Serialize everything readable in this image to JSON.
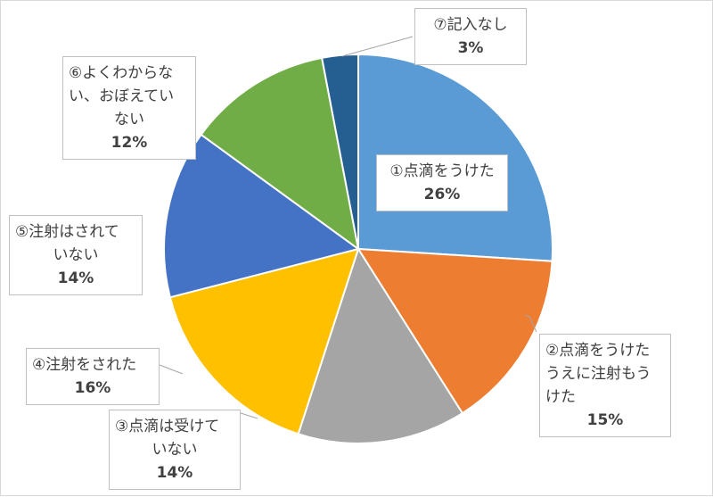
{
  "chart_data": {
    "type": "pie",
    "start_angle_deg": 0,
    "direction": "clockwise",
    "slices": [
      {
        "label": "①点滴をうけた",
        "value": 26,
        "display": "26%",
        "color": "#5B9BD5"
      },
      {
        "label": "②点滴をうけたうえに注射もうけた",
        "value": 15,
        "display": "15%",
        "color": "#ED7D31"
      },
      {
        "label": "③点滴は受けていない",
        "value": 14,
        "display": "14%",
        "color": "#A5A5A5"
      },
      {
        "label": "④注射をされた",
        "value": 16,
        "display": "16%",
        "color": "#FFC000"
      },
      {
        "label": "⑤注射はされていない",
        "value": 14,
        "display": "14%",
        "color": "#4472C4"
      },
      {
        "label": "⑥よくわからない、おぼえていない",
        "value": 12,
        "display": "12%",
        "color": "#70AD47"
      },
      {
        "label": "⑦記入なし",
        "value": 3,
        "display": "3%",
        "color": "#255E91"
      }
    ],
    "label_lines": [
      [
        "①点滴をうけた"
      ],
      [
        "②点滴をうけた",
        "うえに注射もう",
        "けた"
      ],
      [
        "③点滴は受けて",
        "いない"
      ],
      [
        "④注射をされた"
      ],
      [
        "⑤注射はされて",
        "いない"
      ],
      [
        "⑥よくわからな",
        "い、おぼえてい",
        "ない"
      ],
      [
        "⑦記入なし"
      ]
    ]
  }
}
